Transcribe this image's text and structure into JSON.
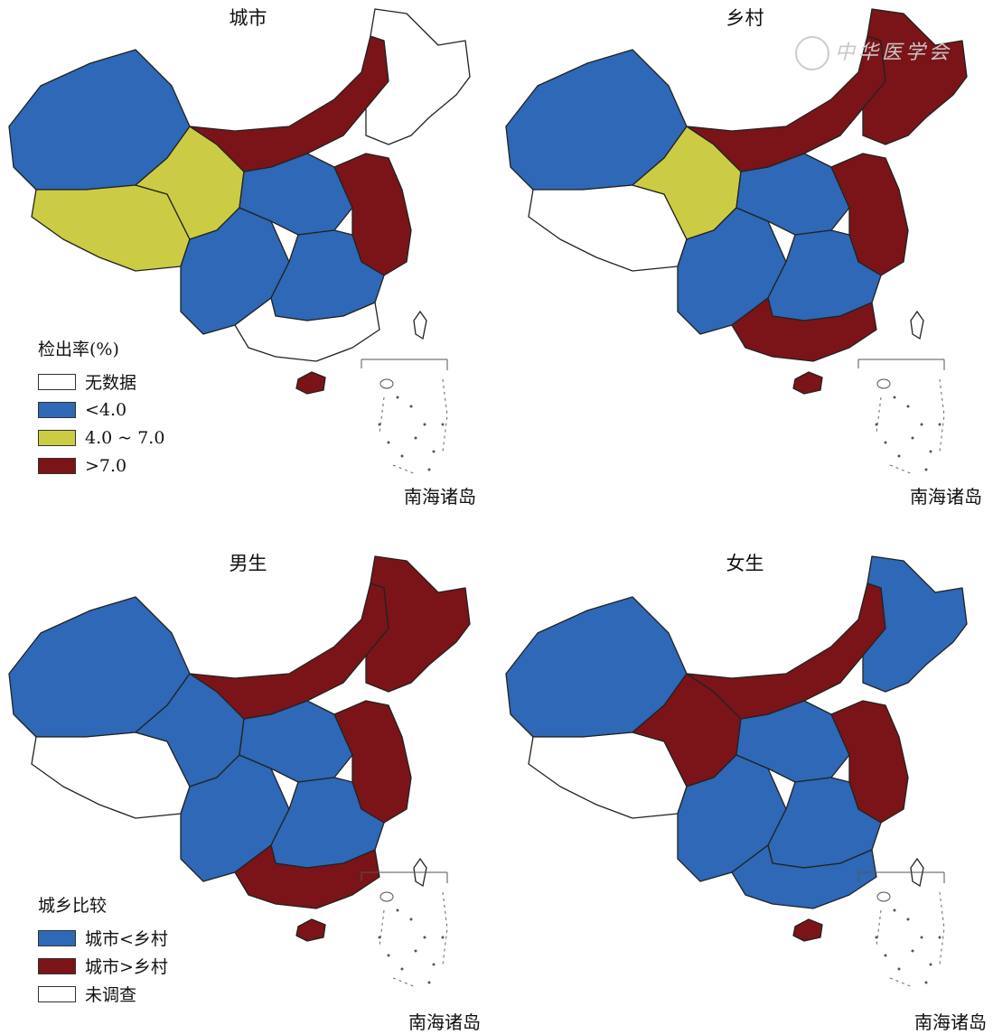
{
  "panels": [
    {
      "id": "urban",
      "title": "城市",
      "islands_label": "南海诸岛",
      "colors": [
        "#2e68b6",
        "#cccc44",
        "#cccc44",
        "#2e68b6",
        "#7a1418",
        "#ffffff",
        "#7a1418"
      ]
    },
    {
      "id": "rural",
      "title": "乡村",
      "islands_label": "南海诸岛",
      "colors": [
        "#2e68b6",
        "#ffffff",
        "#cccc44",
        "#2e68b6",
        "#7a1418",
        "#7a1418",
        "#7a1418"
      ]
    },
    {
      "id": "male",
      "title": "男生",
      "islands_label": "南海诸岛",
      "colors": [
        "#2e68b6",
        "#ffffff",
        "#2e68b6",
        "#2e68b6",
        "#7a1418",
        "#7a1418",
        "#7a1418"
      ]
    },
    {
      "id": "female",
      "title": "女生",
      "islands_label": "南海诸岛",
      "colors": [
        "#2e68b6",
        "#ffffff",
        "#7a1418",
        "#2e68b6",
        "#7a1418",
        "#2e68b6",
        "#7a1418"
      ]
    }
  ],
  "legend_rate": {
    "title": "检出率(%)",
    "items": [
      {
        "label": "无数据",
        "color": "#ffffff"
      },
      {
        "label": "<4.0",
        "color": "#2e68b6"
      },
      {
        "label": "4.0 ~ 7.0",
        "color": "#cccc44"
      },
      {
        "label": ">7.0",
        "color": "#7a1418"
      }
    ]
  },
  "legend_compare": {
    "title": "城乡比较",
    "items": [
      {
        "label": "城市<乡村",
        "color": "#2e68b6"
      },
      {
        "label": "城市>乡村",
        "color": "#7a1418"
      },
      {
        "label": "未调查",
        "color": "#ffffff"
      }
    ]
  },
  "watermark": "中华医学会"
}
